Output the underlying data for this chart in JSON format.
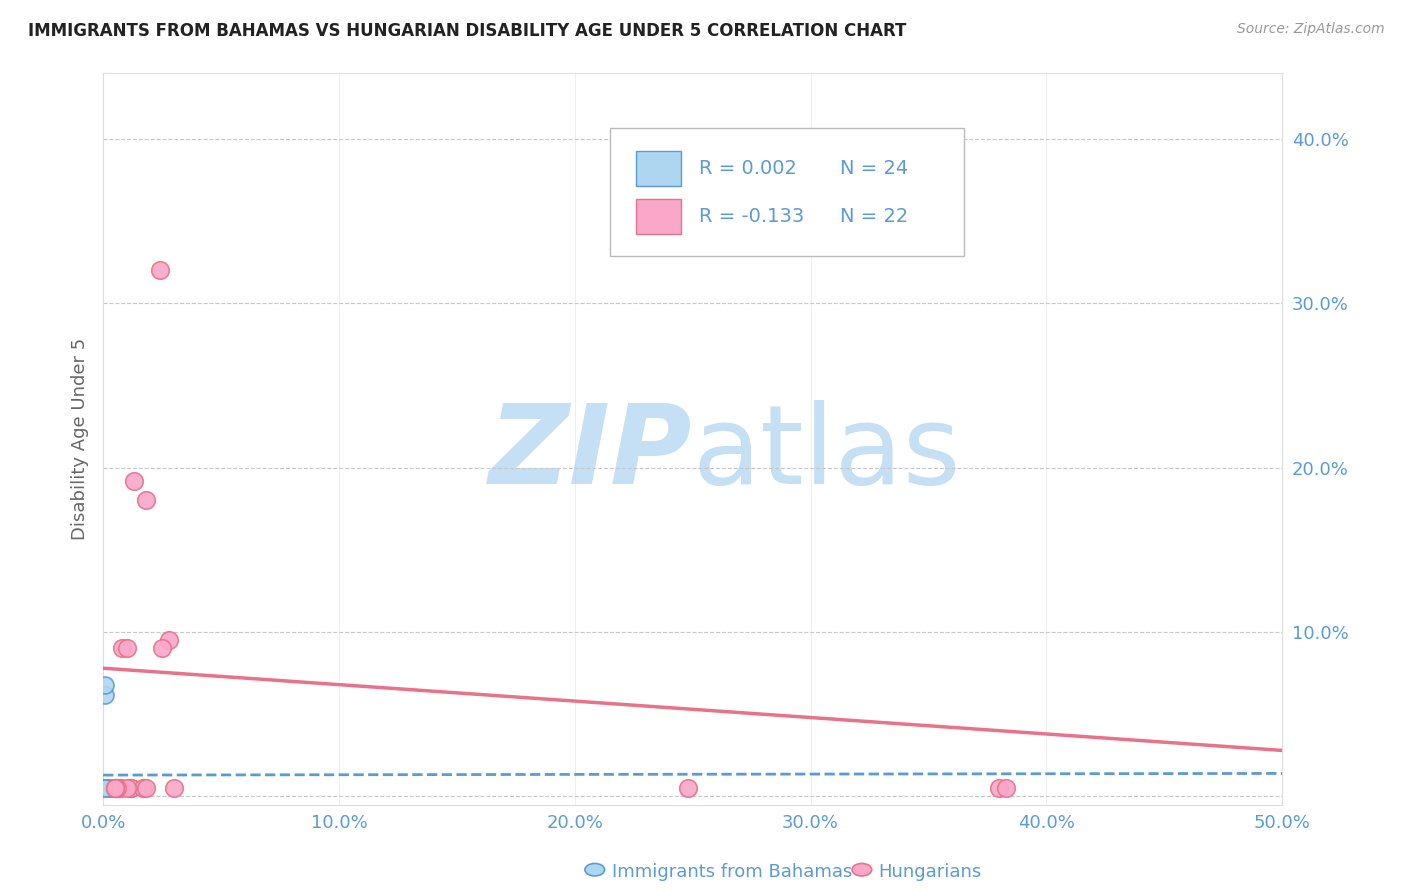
{
  "title": "IMMIGRANTS FROM BAHAMAS VS HUNGARIAN DISABILITY AGE UNDER 5 CORRELATION CHART",
  "source": "Source: ZipAtlas.com",
  "xlabel_label": "Immigrants from Bahamas",
  "ylabel_label": "Disability Age Under 5",
  "xlim": [
    0.0,
    0.5
  ],
  "ylim": [
    -0.005,
    0.44
  ],
  "xticks": [
    0.0,
    0.1,
    0.2,
    0.3,
    0.4,
    0.5
  ],
  "yticks": [
    0.0,
    0.1,
    0.2,
    0.3,
    0.4
  ],
  "ytick_labels": [
    "",
    "10.0%",
    "20.0%",
    "30.0%",
    "40.0%"
  ],
  "xtick_labels": [
    "0.0%",
    "10.0%",
    "20.0%",
    "30.0%",
    "40.0%",
    "50.0%"
  ],
  "legend_r_blue": "R = 0.002",
  "legend_n_blue": "N = 24",
  "legend_r_pink": "R = -0.133",
  "legend_n_pink": "N = 22",
  "blue_scatter_x": [
    0.001,
    0.001,
    0.001,
    0.002,
    0.001,
    0.002,
    0.001,
    0.002,
    0.003,
    0.001,
    0.001,
    0.001,
    0.002,
    0.001,
    0.001,
    0.002,
    0.001,
    0.001,
    0.001,
    0.001,
    0.001,
    0.001,
    0.002,
    0.001
  ],
  "blue_scatter_y": [
    0.062,
    0.068,
    0.005,
    0.005,
    0.005,
    0.005,
    0.005,
    0.005,
    0.005,
    0.005,
    0.005,
    0.005,
    0.005,
    0.005,
    0.005,
    0.005,
    0.005,
    0.005,
    0.005,
    0.005,
    0.005,
    0.005,
    0.005,
    0.005
  ],
  "pink_scatter_x": [
    0.024,
    0.013,
    0.018,
    0.028,
    0.025,
    0.008,
    0.012,
    0.01,
    0.007,
    0.005,
    0.012,
    0.017,
    0.007,
    0.248,
    0.38,
    0.383,
    0.018,
    0.03,
    0.01,
    0.006,
    0.005,
    0.005
  ],
  "pink_scatter_y": [
    0.32,
    0.192,
    0.18,
    0.095,
    0.09,
    0.09,
    0.005,
    0.09,
    0.005,
    0.005,
    0.005,
    0.005,
    0.005,
    0.005,
    0.005,
    0.005,
    0.005,
    0.005,
    0.005,
    0.005,
    0.005,
    0.005
  ],
  "blue_line_x": [
    0.0,
    0.5
  ],
  "blue_line_y": [
    0.013,
    0.014
  ],
  "pink_line_x": [
    0.0,
    0.5
  ],
  "pink_line_y": [
    0.078,
    0.028
  ],
  "background_color": "#ffffff",
  "scatter_blue_color": "#aed6f1",
  "scatter_pink_color": "#f9a8c9",
  "line_blue_color": "#5b9bd5",
  "line_pink_color": "#e8728a",
  "grid_color": "#c8c8c8",
  "title_color": "#222222",
  "axis_label_color": "#666666",
  "tick_color_blue": "#5b9bd5",
  "watermark_zip_color": "#c5dff5",
  "watermark_atlas_color": "#c5dff5"
}
